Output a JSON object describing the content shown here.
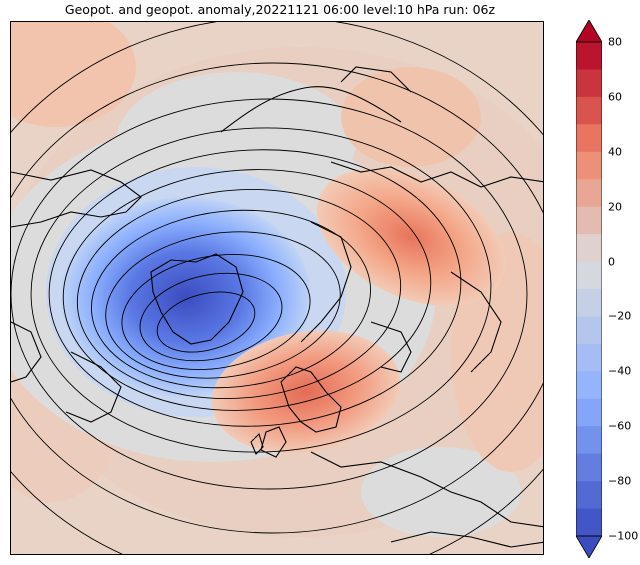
{
  "title": "Geopot. and geopot. anomaly,20221121 06:00 level:10 hPa run: 06z",
  "colorbar": {
    "ticks": [
      "80",
      "60",
      "40",
      "20",
      "0",
      "−20",
      "−40",
      "−60",
      "−80",
      "−100"
    ],
    "min": -100,
    "max": 80,
    "step": 10,
    "colors": {
      "neg_strong": "#3b4cc0",
      "neg_mid": "#7b9ff9",
      "neutral": "#dddcdc",
      "pos_mid": "#f4987a",
      "pos_strong": "#b40426",
      "background_land": "#e8d3c6"
    }
  }
}
